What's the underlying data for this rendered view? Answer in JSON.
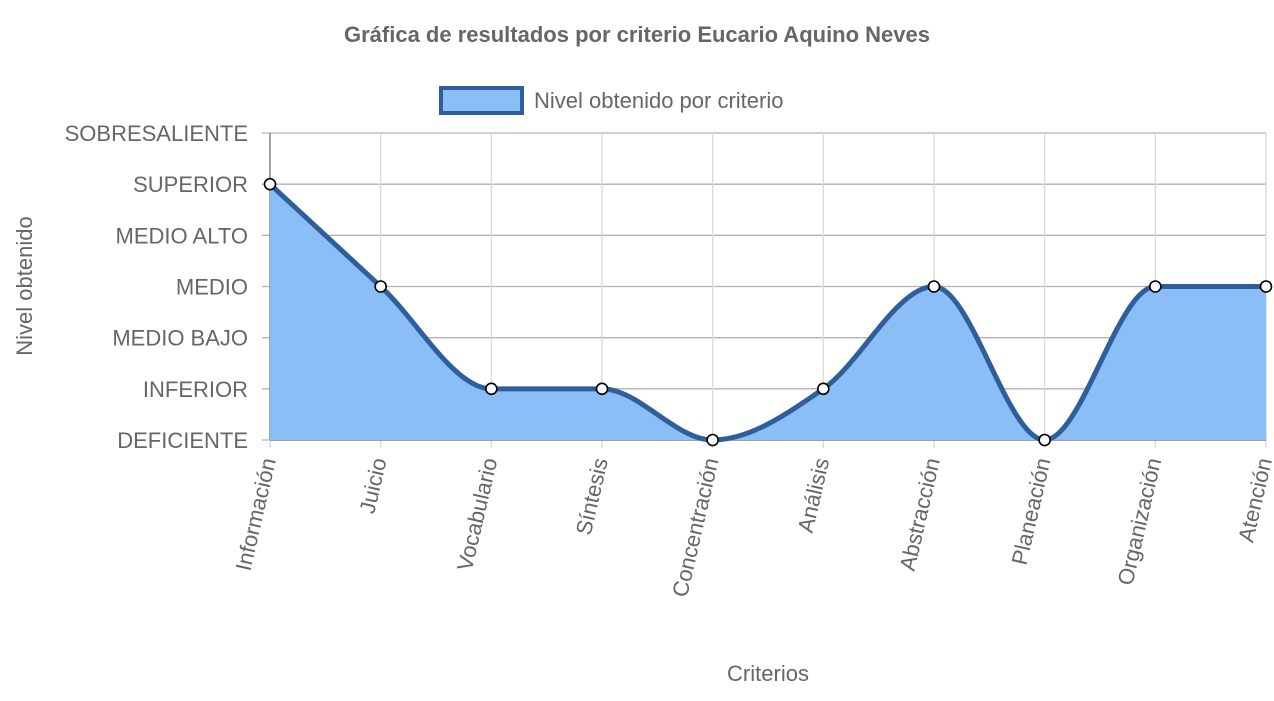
{
  "chart_data": {
    "type": "area",
    "title": "Gráfica de resultados por criterio Eucario Aquino Neves",
    "xlabel": "Criterios",
    "ylabel": "Nivel obtenido",
    "legend_position": "top",
    "grid": true,
    "y_levels": [
      "DEFICIENTE",
      "INFERIOR",
      "MEDIO BAJO",
      "MEDIO",
      "MEDIO ALTO",
      "SUPERIOR",
      "SOBRESALIENTE"
    ],
    "categories": [
      "Información",
      "Juicio",
      "Vocabulario",
      "Síntesis",
      "Concentración",
      "Análisis",
      "Abstracción",
      "Planeación",
      "Organización",
      "Atención"
    ],
    "series": [
      {
        "name": "Nivel obtenido por criterio",
        "values": [
          "SUPERIOR",
          "MEDIO",
          "INFERIOR",
          "INFERIOR",
          "DEFICIENTE",
          "INFERIOR",
          "MEDIO",
          "DEFICIENTE",
          "MEDIO",
          "MEDIO"
        ],
        "fill_color": "#8bbdf7",
        "line_color": "#2f5f9a"
      }
    ]
  }
}
